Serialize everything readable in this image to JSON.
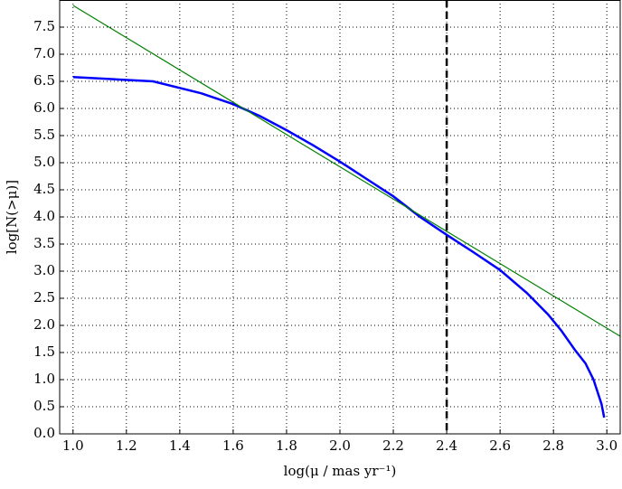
{
  "chart_data": {
    "type": "line",
    "xlabel": "log(μ / mas yr⁻¹)",
    "ylabel": "log[N(>μ)]",
    "xlim": [
      0.95,
      3.05
    ],
    "ylim": [
      0,
      8.0
    ],
    "xticks": [
      {
        "value": 1,
        "label": "1.0"
      },
      1.2,
      1.4,
      1.6,
      1.8,
      {
        "value": 2,
        "label": "2.0"
      },
      2.2,
      2.4,
      2.6,
      2.8,
      {
        "value": 3,
        "label": "3.0"
      }
    ],
    "yticks": [
      {
        "value": 0,
        "label": "0.0"
      },
      0.5,
      {
        "value": 1,
        "label": "1.0"
      },
      1.5,
      {
        "value": 2,
        "label": "2.0"
      },
      2.5,
      {
        "value": 3,
        "label": "3.0"
      },
      3.5,
      {
        "value": 4,
        "label": "4.0"
      },
      4.5,
      {
        "value": 5,
        "label": "5.0"
      },
      5.5,
      {
        "value": 6,
        "label": "6.0"
      },
      6.5,
      {
        "value": 7,
        "label": "7.0"
      },
      7.5
    ],
    "grid": true,
    "vline": {
      "x": 2.4,
      "color": "#000000"
    },
    "series": [
      {
        "color": "#0000ff",
        "x": [
          1.0,
          1.3,
          1.48,
          1.6,
          1.7,
          1.8,
          1.9,
          2.0,
          2.1,
          2.2,
          2.3,
          2.4,
          2.5,
          2.6,
          2.7,
          2.78,
          2.83,
          2.88,
          2.92,
          2.95,
          2.97,
          2.98,
          2.99
        ],
        "values": [
          6.58,
          6.5,
          6.28,
          6.08,
          5.86,
          5.6,
          5.32,
          5.02,
          4.7,
          4.38,
          4.0,
          3.67,
          3.35,
          3.02,
          2.6,
          2.2,
          1.9,
          1.55,
          1.3,
          1.0,
          0.7,
          0.55,
          0.3
        ]
      },
      {
        "color": "#008000",
        "x": [
          1.0,
          3.05
        ],
        "values": [
          7.9,
          1.8
        ]
      }
    ]
  }
}
